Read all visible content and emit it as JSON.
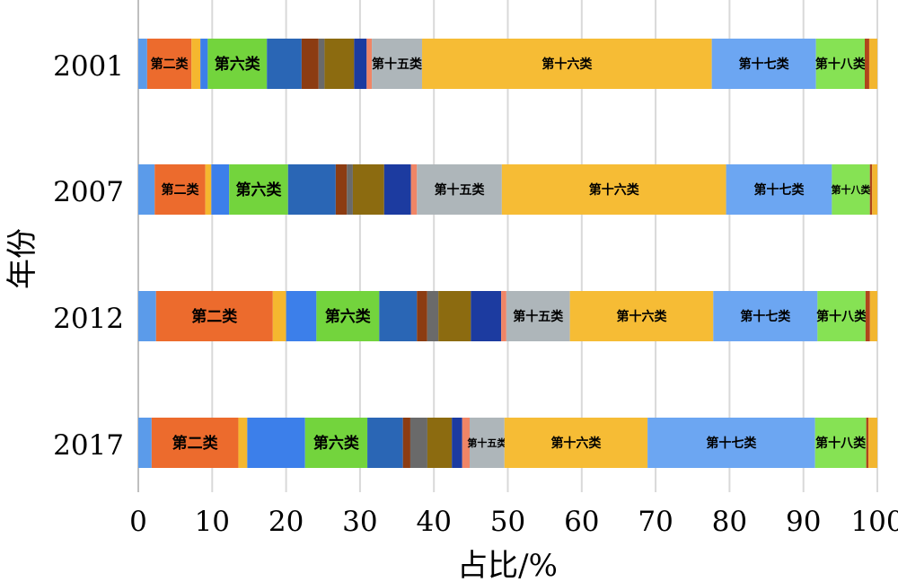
{
  "chart_data": {
    "type": "bar",
    "orientation": "horizontal",
    "stacked": true,
    "title": "",
    "xlabel": "占比/%",
    "ylabel": "年份",
    "xlim": [
      0,
      100
    ],
    "x_ticks": [
      "0",
      "10",
      "20",
      "30",
      "40",
      "50",
      "60",
      "70",
      "80",
      "90",
      "100"
    ],
    "grid": true,
    "legend": "none",
    "categories": [
      "2001",
      "2007",
      "2012",
      "2017"
    ],
    "segments": [
      {
        "color": "#5B9BEA",
        "label": "",
        "values": [
          1.2,
          2.2,
          2.4,
          1.8
        ]
      },
      {
        "color": "#EC6B2D",
        "label": "第二类",
        "values": [
          6.0,
          6.8,
          15.8,
          11.7
        ]
      },
      {
        "color": "#F5B72F",
        "label": "",
        "values": [
          1.2,
          0.8,
          1.8,
          1.2
        ]
      },
      {
        "color": "#3C7FEA",
        "label": "",
        "values": [
          1.0,
          2.4,
          4.1,
          7.8
        ]
      },
      {
        "color": "#73D43D",
        "label": "第六类",
        "values": [
          8.0,
          7.9,
          8.5,
          8.4
        ]
      },
      {
        "color": "#2A66B5",
        "label": "",
        "values": [
          4.7,
          6.4,
          5.1,
          4.8
        ]
      },
      {
        "color": "#8C3C12",
        "label": "",
        "values": [
          2.3,
          1.5,
          1.4,
          1.0
        ]
      },
      {
        "color": "#6A6A6A",
        "label": "",
        "values": [
          0.8,
          0.8,
          1.5,
          2.3
        ]
      },
      {
        "color": "#8C6B10",
        "label": "",
        "values": [
          4.0,
          4.2,
          4.4,
          3.3
        ]
      },
      {
        "color": "#1C3BA0",
        "label": "",
        "values": [
          1.7,
          3.6,
          4.1,
          1.4
        ]
      },
      {
        "color": "#F08566",
        "label": "",
        "values": [
          0.7,
          0.8,
          0.7,
          1.0
        ]
      },
      {
        "color": "#AEB6BA",
        "label": "第十五类",
        "values": [
          6.8,
          11.4,
          8.6,
          4.7
        ]
      },
      {
        "color": "#F6BC35",
        "label": "第十六类",
        "values": [
          39.2,
          30.1,
          19.4,
          19.3
        ]
      },
      {
        "color": "#6CA6F2",
        "label": "第十七类",
        "values": [
          14.1,
          14.2,
          14.1,
          22.6
        ]
      },
      {
        "color": "#86E254",
        "label": "第十八类",
        "values": [
          6.6,
          5.1,
          6.5,
          6.9
        ]
      },
      {
        "color": "#B0451B",
        "label": "",
        "values": [
          0.6,
          0.3,
          0.6,
          0.3
        ]
      },
      {
        "color": "#F2B630",
        "label": "",
        "values": [
          1.1,
          0.7,
          1.0,
          1.2
        ]
      }
    ]
  }
}
